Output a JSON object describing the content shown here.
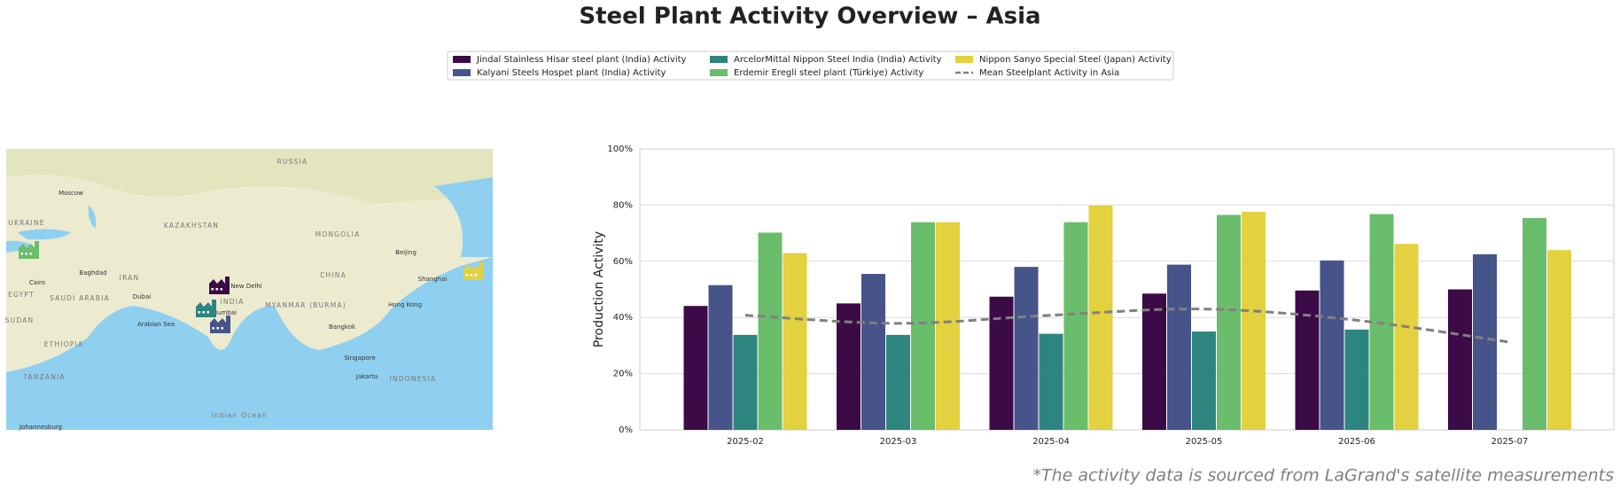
{
  "chart_data": {
    "type": "bar",
    "title": "Steel Plant Activity Overview – Asia",
    "ylabel": "Production Activity",
    "categories": [
      "2025-02",
      "2025-03",
      "2025-04",
      "2025-05",
      "2025-06",
      "2025-07"
    ],
    "series": [
      {
        "name": "Jindal Stainless Hisar steel plant (India) Activity",
        "color": "#3b0a47",
        "values": [
          44.1,
          45,
          47.4,
          48.5,
          49.6,
          50
        ]
      },
      {
        "name": "Kalyani Steels Hospet plant (India) Activity",
        "color": "#46548a",
        "values": [
          51.5,
          55.5,
          58,
          58.8,
          60.3,
          62.5
        ]
      },
      {
        "name": "ArcelorMittal Nippon Steel India (India) Activity",
        "color": "#2e8580",
        "values": [
          33.8,
          33.8,
          34.2,
          35,
          35.7,
          null
        ]
      },
      {
        "name": "Erdemir Eregli steel plant (Türkiye) Activity",
        "color": "#6abd6a",
        "values": [
          70.2,
          73.9,
          73.9,
          76.5,
          76.8,
          75.4
        ]
      },
      {
        "name": "Nippon Sanyo Special Steel (Japan) Activity",
        "color": "#e3d13f",
        "values": [
          62.9,
          73.9,
          79.8,
          77.6,
          66.2,
          64
        ]
      },
      {
        "name": "Mean Steelplant Activity in Asia",
        "color": "#808080",
        "type": "line",
        "dashed": true,
        "values": [
          40.8,
          37.9,
          40.8,
          43,
          39,
          31.2
        ]
      }
    ],
    "ylim": [
      0,
      100
    ],
    "yticks": [
      {
        "value": 0,
        "label": "0%"
      },
      {
        "value": 20,
        "label": "20%"
      },
      {
        "value": 40,
        "label": "40%"
      },
      {
        "value": 60,
        "label": "60%"
      },
      {
        "value": 80,
        "label": "80%"
      },
      {
        "value": 100,
        "label": "100%"
      }
    ],
    "grid": true,
    "legend": "top"
  },
  "map": {
    "labels": [
      "RUSSIA",
      "Moscow",
      "UKRAINE",
      "KAZAKHSTAN",
      "MONGOLIA",
      "Beijing",
      "CHINA",
      "Baghdad",
      "IRAN",
      "INDIA",
      "New Delhi",
      "Shanghai",
      "Cairo",
      "SAUDI ARABIA",
      "Dubai",
      "EGYPT",
      "MYANMAR (BURMA)",
      "Hong Kong",
      "Mumbai",
      "SUDAN",
      "Arabian Sea",
      "Bangkok",
      "ETHIOPIA",
      "Singapore",
      "TANZANIA",
      "Jakarta",
      "INDONESIA",
      "Indian Ocean",
      "Johannesburg"
    ]
  },
  "footnote": "*The activity data is sourced from LaGrand's satellite measurements"
}
